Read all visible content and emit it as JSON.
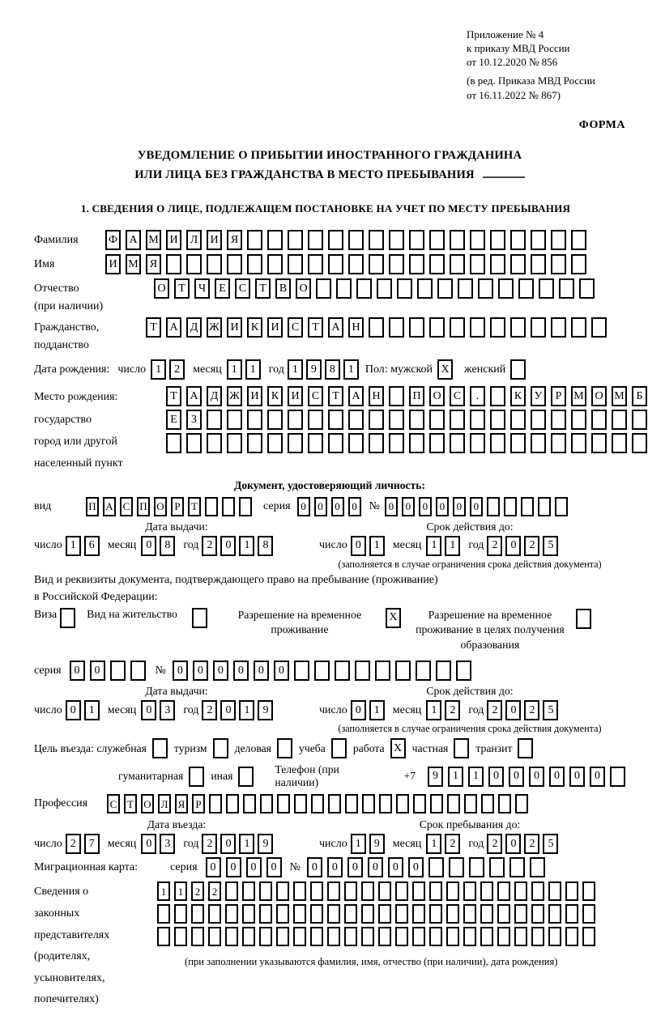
{
  "ink_color": "#000000",
  "paper_color": "#ffffff",
  "header": {
    "annex_lines": [
      "Приложение № 4",
      "к приказу МВД России",
      "от 10.12.2020 № 856"
    ],
    "amendment_lines": [
      "(в ред. Приказа МВД России",
      "от 16.11.2022 № 867)"
    ],
    "form_label": "ФОРМА"
  },
  "title": {
    "line1": "УВЕДОМЛЕНИЕ О ПРИБЫТИИ ИНОСТРАННОГО ГРАЖДАНИНА",
    "line2": "ИЛИ ЛИЦА БЕЗ ГРАЖДАНСТВА В МЕСТО ПРЕБЫВАНИЯ"
  },
  "section_heading": "1. СВЕДЕНИЯ О ЛИЦЕ, ПОДЛЕЖАЩЕМ ПОСТАНОВКЕ НА УЧЕТ ПО МЕСТУ ПРЕБЫВАНИЯ",
  "labels": {
    "surname": "Фамилия",
    "given_name": "Имя",
    "patronymic": "Отчество",
    "patronymic_note": "(при наличии)",
    "citizenship_line1": "Гражданство,",
    "citizenship_line2": "подданство",
    "birth_date": "Дата рождения:",
    "day": "число",
    "month": "месяц",
    "year": "год",
    "sex": "Пол: мужской",
    "female": "женский",
    "birth_place": "Место рождения:",
    "birth_place_state": "государство",
    "birth_place_city1": "город или другой",
    "birth_place_city2": "населенный пункт",
    "identity_doc_heading": "Документ, удостоверяющий личность:",
    "doc_kind": "вид",
    "series": "серия",
    "number_sign": "№",
    "issue_date": "Дата выдачи:",
    "valid_until": "Срок действия до:",
    "valid_note": "(заполняется в случае ограничения срока действия документа)",
    "residence_doc_line1": "Вид и реквизиты документа, подтверждающего право на пребывание (проживание)",
    "residence_doc_line2": "в Российской Федерации:",
    "visa": "Виза",
    "residence_permit": "Вид на жительство",
    "temp_residence": "Разрешение на временное проживание",
    "temp_residence_education": "Разрешение на временное проживание в целях получения образования",
    "entry_purpose": "Цель въезда: служебная",
    "purpose_tourism": "туризм",
    "purpose_business": "деловая",
    "purpose_study": "учеба",
    "purpose_work": "работа",
    "purpose_private": "частная",
    "purpose_transit": "транзит",
    "purpose_humanitarian": "гуманитарная",
    "purpose_other": "иная",
    "phone": "Телефон (при наличии)",
    "phone_prefix": "+7",
    "profession": "Профессия",
    "entry_date": "Дата въезда:",
    "stay_until": "Срок пребывания до:",
    "migration_card": "Миграционная карта:",
    "representatives_lines": [
      "Сведения о",
      "законных",
      "представителях",
      "(родителях,",
      "усыновителях,",
      "попечителях)"
    ],
    "representatives_note": "(при заполнении указываются фамилия, имя, отчество (при наличии), дата рождения)"
  },
  "person": {
    "surname": {
      "value": "ФАМИЛИЯ",
      "count": 24
    },
    "given_name": {
      "value": "ИМЯ",
      "count": 24
    },
    "patronymic": {
      "value": "ОТЧЕСТВО",
      "count": 22
    },
    "citizenship": {
      "value": "ТАДЖИКИСТАН",
      "count": 23
    },
    "birth_day": {
      "value": "12",
      "count": 2
    },
    "birth_month": {
      "value": "11",
      "count": 2
    },
    "birth_year": {
      "value": "1981",
      "count": 4
    },
    "sex_male": {
      "value": "X",
      "count": 1
    },
    "sex_female": {
      "value": "",
      "count": 1
    },
    "birth_place_row1": {
      "value": "ТАДЖИКИСТАН ПОС. КУРМОМБ",
      "count": 24
    },
    "birth_place_row2": {
      "value": "ЕЗ",
      "count": 24
    },
    "birth_place_row3": {
      "value": "",
      "count": 24
    }
  },
  "identity_document": {
    "kind": {
      "value": "ПАСПОРТ",
      "count": 10
    },
    "series": {
      "value": "0000",
      "count": 4
    },
    "number": {
      "value": "000000",
      "count": 11
    },
    "issue_day": {
      "value": "16",
      "count": 2
    },
    "issue_month": {
      "value": "08",
      "count": 2
    },
    "issue_year": {
      "value": "2018",
      "count": 4
    },
    "valid_day": {
      "value": "01",
      "count": 2
    },
    "valid_month": {
      "value": "11",
      "count": 2
    },
    "valid_year": {
      "value": "2025",
      "count": 4
    }
  },
  "residence_document": {
    "visa_checkbox": {
      "value": "",
      "count": 1
    },
    "residence_permit_checkbox": {
      "value": "",
      "count": 1
    },
    "temp_residence_checkbox": {
      "value": "X",
      "count": 1
    },
    "temp_residence_education_checkbox": {
      "value": "",
      "count": 1
    },
    "series": {
      "value": "00",
      "count": 4
    },
    "number": {
      "value": "000000",
      "count": 15
    },
    "issue_day": {
      "value": "01",
      "count": 2
    },
    "issue_month": {
      "value": "03",
      "count": 2
    },
    "issue_year": {
      "value": "2019",
      "count": 4
    },
    "valid_day": {
      "value": "01",
      "count": 2
    },
    "valid_month": {
      "value": "12",
      "count": 2
    },
    "valid_year": {
      "value": "2025",
      "count": 4
    }
  },
  "entry": {
    "purpose_official": {
      "value": "",
      "count": 1
    },
    "purpose_tourism": {
      "value": "",
      "count": 1
    },
    "purpose_business": {
      "value": "",
      "count": 1
    },
    "purpose_study": {
      "value": "",
      "count": 1
    },
    "purpose_work": {
      "value": "X",
      "count": 1
    },
    "purpose_private": {
      "value": "",
      "count": 1
    },
    "purpose_transit": {
      "value": "",
      "count": 1
    },
    "purpose_humanitarian": {
      "value": "",
      "count": 1
    },
    "purpose_other": {
      "value": "",
      "count": 1
    },
    "phone": {
      "value": "911000000",
      "count": 10
    },
    "profession": {
      "value": "СТОЛЯР",
      "count": 25
    },
    "entry_day": {
      "value": "27",
      "count": 2
    },
    "entry_month": {
      "value": "03",
      "count": 2
    },
    "entry_year": {
      "value": "2019",
      "count": 4
    },
    "stay_day": {
      "value": "19",
      "count": 2
    },
    "stay_month": {
      "value": "12",
      "count": 2
    },
    "stay_year": {
      "value": "2025",
      "count": 4
    }
  },
  "migration_card": {
    "series": {
      "value": "0000",
      "count": 4
    },
    "number": {
      "value": "000000",
      "count": 12
    }
  },
  "representatives": {
    "row1": {
      "value": "1122",
      "count": 26
    },
    "row2": {
      "value": "",
      "count": 26
    },
    "row3": {
      "value": "",
      "count": 26
    }
  }
}
